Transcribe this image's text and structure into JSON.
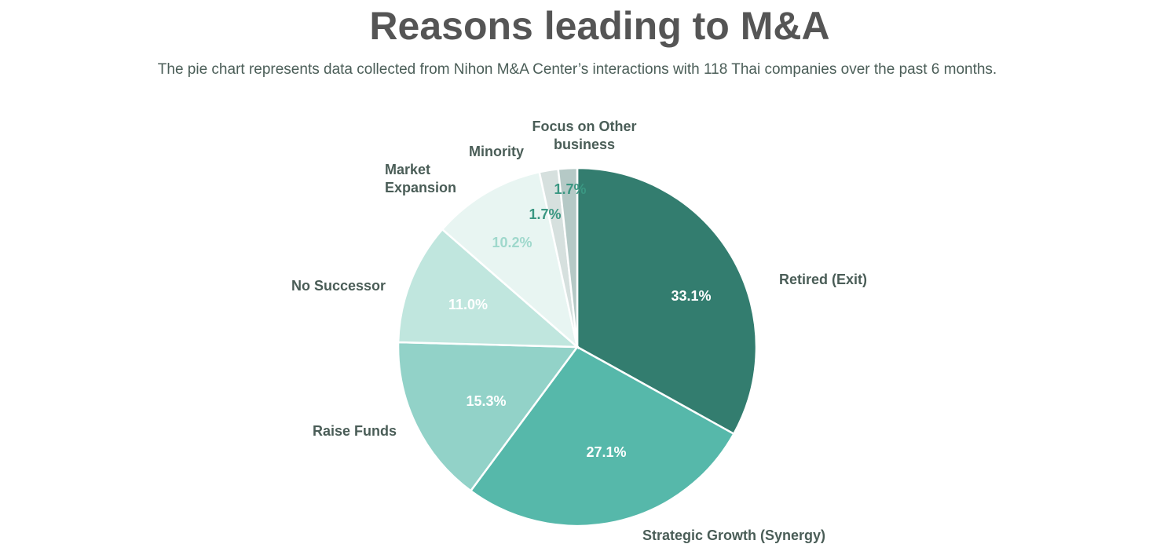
{
  "chart_data": {
    "type": "pie",
    "title": "Reasons leading to M&A",
    "subtitle": "The pie chart represents data collected from Nihon M&A Center’s interactions with 118 Thai companies over the past 6 months.",
    "slices": [
      {
        "label": [
          "Retired (Exit)"
        ],
        "value": 33.1,
        "value_label": "33.1%",
        "color": "#337d6f",
        "label_color": "#ffffff"
      },
      {
        "label": [
          "Strategic Growth (Synergy)"
        ],
        "value": 27.1,
        "value_label": "27.1%",
        "color": "#56b8aa",
        "label_color": "#ffffff"
      },
      {
        "label": [
          "Raise Funds"
        ],
        "value": 15.3,
        "value_label": "15.3%",
        "color": "#92d2c8",
        "label_color": "#ffffff"
      },
      {
        "label": [
          "No Successor"
        ],
        "value": 11.0,
        "value_label": "11.0%",
        "color": "#c0e6de",
        "label_color": "#ffffff"
      },
      {
        "label": [
          "Market",
          "Expansion"
        ],
        "value": 10.2,
        "value_label": "10.2%",
        "color": "#e8f5f2",
        "label_color": "#9fd8cc"
      },
      {
        "label": [
          "Minority"
        ],
        "value": 1.7,
        "value_label": "1.7%",
        "color": "#d6e0de",
        "label_color": "#3a9782"
      },
      {
        "label": [
          "Focus on Other",
          "business"
        ],
        "value": 1.7,
        "value_label": "1.7%",
        "color": "#b5c9c6",
        "label_color": "#3a9782"
      }
    ]
  }
}
